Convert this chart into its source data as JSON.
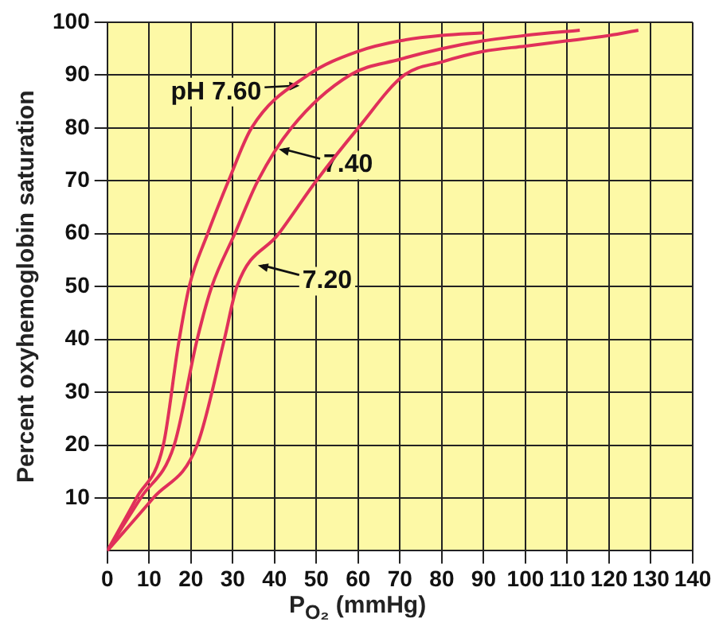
{
  "chart_data": {
    "type": "line",
    "xlabel": "P$_{O₂}$ (mmHg)",
    "ylabel": "Percent oxyhemoglobin saturation",
    "series": [
      {
        "color": "#e0305a",
        "x": [
          0,
          7,
          13.4,
          17,
          19.6,
          24,
          29,
          34.5,
          48,
          60,
          70,
          80,
          90
        ],
        "values": [
          0,
          10,
          20,
          39,
          50,
          60,
          70,
          80,
          90,
          94.5,
          96.5,
          97.5,
          98
        ]
      },
      {
        "color": "#e0305a",
        "x": [
          0,
          8,
          16,
          21.5,
          25,
          30.5,
          36,
          44,
          58,
          70,
          80,
          90,
          100,
          113
        ],
        "values": [
          0,
          10,
          20,
          40,
          50,
          60,
          70,
          80,
          90,
          93,
          95,
          96.5,
          97.5,
          98.5
        ]
      },
      {
        "color": "#e0305a",
        "x": [
          0,
          11,
          21.5,
          28,
          31,
          41,
          50,
          60,
          71,
          80,
          90,
          100,
          110,
          120,
          127
        ],
        "values": [
          0,
          10,
          20,
          40,
          50,
          60,
          70,
          80,
          90,
          92.5,
          94.5,
          95.5,
          96.5,
          97.5,
          98.5
        ]
      }
    ],
    "annotations": [
      {
        "text": "pH 7.60",
        "x": 46,
        "y": 88
      },
      {
        "text": "7.40",
        "x": 41,
        "y": 76
      },
      {
        "text": "7.20",
        "x": 36,
        "y": 54
      }
    ],
    "xlim": [
      0,
      140
    ],
    "xticks": [
      0,
      10,
      20,
      30,
      40,
      50,
      60,
      70,
      80,
      90,
      100,
      110,
      120,
      130,
      140
    ],
    "ylim": [
      0,
      100
    ],
    "yticks": [
      10,
      20,
      30,
      40,
      50,
      60,
      70,
      80,
      90,
      100
    ],
    "grid": true,
    "legend": false,
    "marker": "none",
    "line_style": "solid"
  }
}
